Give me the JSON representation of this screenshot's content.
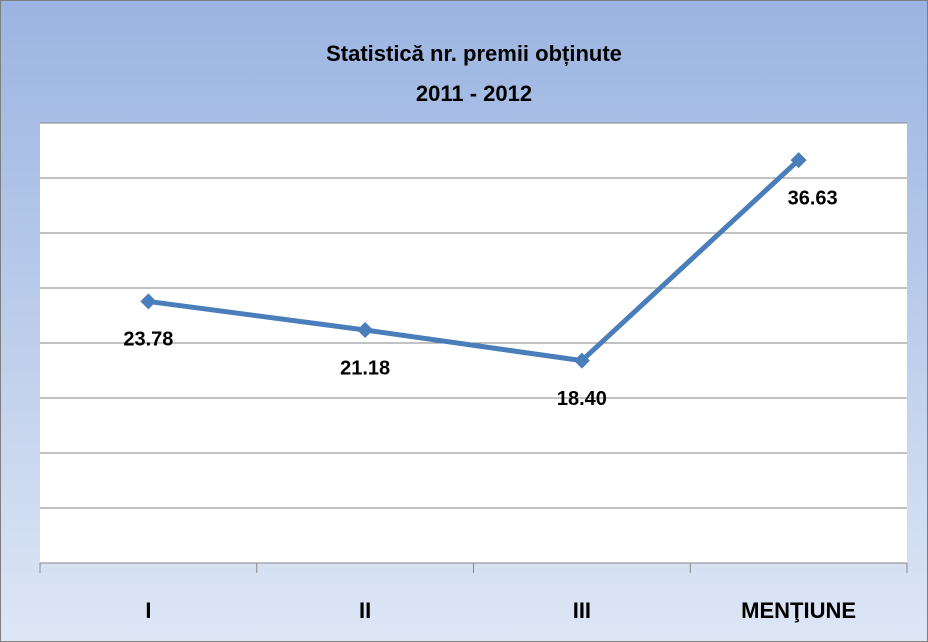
{
  "chart_data": {
    "type": "line",
    "title": "Statistică nr. premii obținute",
    "subtitle": "2011 - 2012",
    "categories": [
      "I",
      "II",
      "III",
      "MENŢIUNE"
    ],
    "values": [
      23.78,
      21.18,
      18.4,
      36.63
    ],
    "value_labels": [
      "23.78",
      "21.18",
      "18.40",
      "36.63"
    ],
    "color": "#4a7ebb",
    "ylim": [
      0,
      40
    ],
    "yticks": [
      0,
      5,
      10,
      15,
      20,
      25,
      30,
      35,
      40
    ],
    "grid": true
  }
}
